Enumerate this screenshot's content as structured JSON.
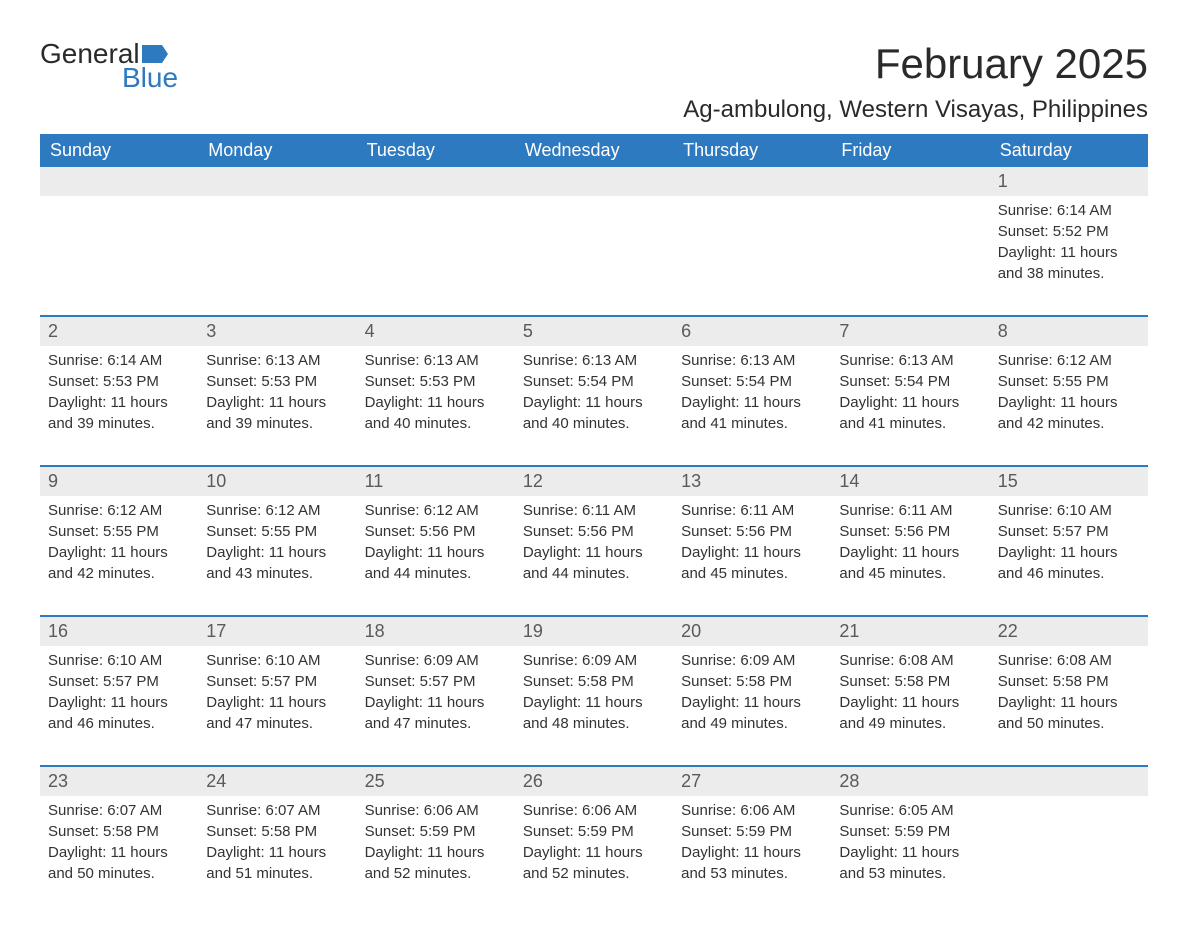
{
  "logo": {
    "text_a": "General",
    "text_b": "Blue",
    "flag_color": "#2d7ac0"
  },
  "title": "February 2025",
  "location": "Ag-ambulong, Western Visayas, Philippines",
  "colors": {
    "header_bg": "#2d7ac0",
    "header_text": "#ffffff",
    "daynum_bg": "#ececec",
    "row_divider": "#2d7ac0",
    "body_text": "#333333"
  },
  "weekdays": [
    "Sunday",
    "Monday",
    "Tuesday",
    "Wednesday",
    "Thursday",
    "Friday",
    "Saturday"
  ],
  "weeks": [
    [
      {
        "day": "",
        "sunrise": "",
        "sunset": "",
        "daylight": ""
      },
      {
        "day": "",
        "sunrise": "",
        "sunset": "",
        "daylight": ""
      },
      {
        "day": "",
        "sunrise": "",
        "sunset": "",
        "daylight": ""
      },
      {
        "day": "",
        "sunrise": "",
        "sunset": "",
        "daylight": ""
      },
      {
        "day": "",
        "sunrise": "",
        "sunset": "",
        "daylight": ""
      },
      {
        "day": "",
        "sunrise": "",
        "sunset": "",
        "daylight": ""
      },
      {
        "day": "1",
        "sunrise": "Sunrise: 6:14 AM",
        "sunset": "Sunset: 5:52 PM",
        "daylight": "Daylight: 11 hours and 38 minutes."
      }
    ],
    [
      {
        "day": "2",
        "sunrise": "Sunrise: 6:14 AM",
        "sunset": "Sunset: 5:53 PM",
        "daylight": "Daylight: 11 hours and 39 minutes."
      },
      {
        "day": "3",
        "sunrise": "Sunrise: 6:13 AM",
        "sunset": "Sunset: 5:53 PM",
        "daylight": "Daylight: 11 hours and 39 minutes."
      },
      {
        "day": "4",
        "sunrise": "Sunrise: 6:13 AM",
        "sunset": "Sunset: 5:53 PM",
        "daylight": "Daylight: 11 hours and 40 minutes."
      },
      {
        "day": "5",
        "sunrise": "Sunrise: 6:13 AM",
        "sunset": "Sunset: 5:54 PM",
        "daylight": "Daylight: 11 hours and 40 minutes."
      },
      {
        "day": "6",
        "sunrise": "Sunrise: 6:13 AM",
        "sunset": "Sunset: 5:54 PM",
        "daylight": "Daylight: 11 hours and 41 minutes."
      },
      {
        "day": "7",
        "sunrise": "Sunrise: 6:13 AM",
        "sunset": "Sunset: 5:54 PM",
        "daylight": "Daylight: 11 hours and 41 minutes."
      },
      {
        "day": "8",
        "sunrise": "Sunrise: 6:12 AM",
        "sunset": "Sunset: 5:55 PM",
        "daylight": "Daylight: 11 hours and 42 minutes."
      }
    ],
    [
      {
        "day": "9",
        "sunrise": "Sunrise: 6:12 AM",
        "sunset": "Sunset: 5:55 PM",
        "daylight": "Daylight: 11 hours and 42 minutes."
      },
      {
        "day": "10",
        "sunrise": "Sunrise: 6:12 AM",
        "sunset": "Sunset: 5:55 PM",
        "daylight": "Daylight: 11 hours and 43 minutes."
      },
      {
        "day": "11",
        "sunrise": "Sunrise: 6:12 AM",
        "sunset": "Sunset: 5:56 PM",
        "daylight": "Daylight: 11 hours and 44 minutes."
      },
      {
        "day": "12",
        "sunrise": "Sunrise: 6:11 AM",
        "sunset": "Sunset: 5:56 PM",
        "daylight": "Daylight: 11 hours and 44 minutes."
      },
      {
        "day": "13",
        "sunrise": "Sunrise: 6:11 AM",
        "sunset": "Sunset: 5:56 PM",
        "daylight": "Daylight: 11 hours and 45 minutes."
      },
      {
        "day": "14",
        "sunrise": "Sunrise: 6:11 AM",
        "sunset": "Sunset: 5:56 PM",
        "daylight": "Daylight: 11 hours and 45 minutes."
      },
      {
        "day": "15",
        "sunrise": "Sunrise: 6:10 AM",
        "sunset": "Sunset: 5:57 PM",
        "daylight": "Daylight: 11 hours and 46 minutes."
      }
    ],
    [
      {
        "day": "16",
        "sunrise": "Sunrise: 6:10 AM",
        "sunset": "Sunset: 5:57 PM",
        "daylight": "Daylight: 11 hours and 46 minutes."
      },
      {
        "day": "17",
        "sunrise": "Sunrise: 6:10 AM",
        "sunset": "Sunset: 5:57 PM",
        "daylight": "Daylight: 11 hours and 47 minutes."
      },
      {
        "day": "18",
        "sunrise": "Sunrise: 6:09 AM",
        "sunset": "Sunset: 5:57 PM",
        "daylight": "Daylight: 11 hours and 47 minutes."
      },
      {
        "day": "19",
        "sunrise": "Sunrise: 6:09 AM",
        "sunset": "Sunset: 5:58 PM",
        "daylight": "Daylight: 11 hours and 48 minutes."
      },
      {
        "day": "20",
        "sunrise": "Sunrise: 6:09 AM",
        "sunset": "Sunset: 5:58 PM",
        "daylight": "Daylight: 11 hours and 49 minutes."
      },
      {
        "day": "21",
        "sunrise": "Sunrise: 6:08 AM",
        "sunset": "Sunset: 5:58 PM",
        "daylight": "Daylight: 11 hours and 49 minutes."
      },
      {
        "day": "22",
        "sunrise": "Sunrise: 6:08 AM",
        "sunset": "Sunset: 5:58 PM",
        "daylight": "Daylight: 11 hours and 50 minutes."
      }
    ],
    [
      {
        "day": "23",
        "sunrise": "Sunrise: 6:07 AM",
        "sunset": "Sunset: 5:58 PM",
        "daylight": "Daylight: 11 hours and 50 minutes."
      },
      {
        "day": "24",
        "sunrise": "Sunrise: 6:07 AM",
        "sunset": "Sunset: 5:58 PM",
        "daylight": "Daylight: 11 hours and 51 minutes."
      },
      {
        "day": "25",
        "sunrise": "Sunrise: 6:06 AM",
        "sunset": "Sunset: 5:59 PM",
        "daylight": "Daylight: 11 hours and 52 minutes."
      },
      {
        "day": "26",
        "sunrise": "Sunrise: 6:06 AM",
        "sunset": "Sunset: 5:59 PM",
        "daylight": "Daylight: 11 hours and 52 minutes."
      },
      {
        "day": "27",
        "sunrise": "Sunrise: 6:06 AM",
        "sunset": "Sunset: 5:59 PM",
        "daylight": "Daylight: 11 hours and 53 minutes."
      },
      {
        "day": "28",
        "sunrise": "Sunrise: 6:05 AM",
        "sunset": "Sunset: 5:59 PM",
        "daylight": "Daylight: 11 hours and 53 minutes."
      },
      {
        "day": "",
        "sunrise": "",
        "sunset": "",
        "daylight": ""
      }
    ]
  ]
}
